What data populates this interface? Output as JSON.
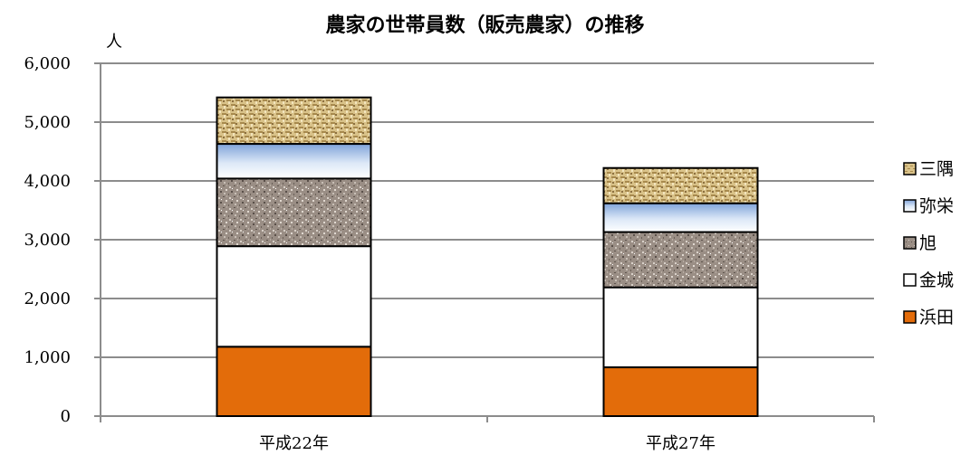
{
  "chart_data": {
    "type": "bar",
    "stacked": true,
    "title": "農家の世帯員数（販売農家）の推移",
    "y_unit": "人",
    "categories": [
      "平成22年",
      "平成27年"
    ],
    "ylim": [
      0,
      6000
    ],
    "y_ticks": [
      "0",
      "1,000",
      "2,000",
      "3,000",
      "4,000",
      "5,000",
      "6,000"
    ],
    "grid": true,
    "legend_position": "right",
    "series": [
      {
        "name": "浜田",
        "values": [
          1180,
          830
        ],
        "color": "#e36c0a",
        "pattern": "solid"
      },
      {
        "name": "金城",
        "values": [
          1710,
          1360
        ],
        "color": "#ffffff",
        "pattern": "solid"
      },
      {
        "name": "旭",
        "values": [
          1150,
          940
        ],
        "color": "#9c8f86",
        "pattern": "granite"
      },
      {
        "name": "弥栄",
        "values": [
          590,
          490
        ],
        "color": "#c6d9f1",
        "pattern": "gradient"
      },
      {
        "name": "三隅",
        "values": [
          790,
          600
        ],
        "color": "#d8c08a",
        "pattern": "burlap"
      }
    ]
  }
}
